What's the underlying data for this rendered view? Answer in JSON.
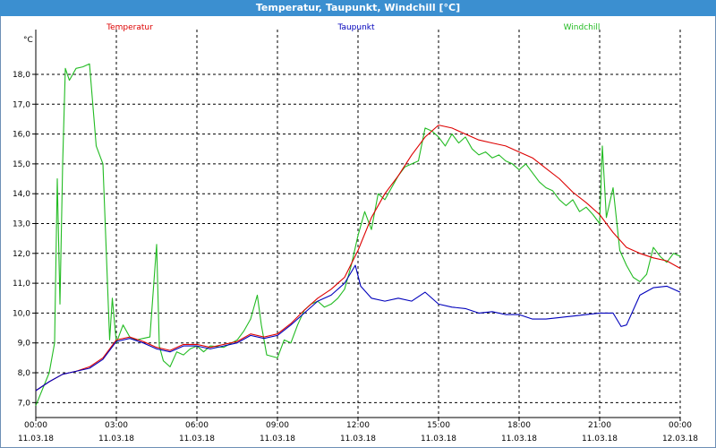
{
  "window": {
    "title": "Temperatur, Taupunkt, Windchill [°C]"
  },
  "colors": {
    "temperature": "#dd0000",
    "dewpoint": "#0000bb",
    "windchill": "#22bb22",
    "grid": "#000000",
    "titlebar": "#3b8fd0"
  },
  "chart_data": {
    "type": "line",
    "title": "Temperatur, Taupunkt, Windchill [°C]",
    "ylabel": "°C",
    "ylim": [
      6.5,
      19.5
    ],
    "xlim_hours": [
      0,
      24
    ],
    "grid": true,
    "legend_position": "top",
    "yticks": [
      "7,0",
      "8,0",
      "9,0",
      "10,0",
      "11,0",
      "12,0",
      "13,0",
      "14,0",
      "15,0",
      "16,0",
      "17,0",
      "18,0"
    ],
    "xticks": [
      {
        "time": "00:00",
        "date": "11.03.18"
      },
      {
        "time": "03:00",
        "date": "11.03.18"
      },
      {
        "time": "06:00",
        "date": "11.03.18"
      },
      {
        "time": "09:00",
        "date": "11.03.18"
      },
      {
        "time": "12:00",
        "date": "11.03.18"
      },
      {
        "time": "15:00",
        "date": "11.03.18"
      },
      {
        "time": "18:00",
        "date": "11.03.18"
      },
      {
        "time": "21:00",
        "date": "11.03.18"
      },
      {
        "time": "00:00",
        "date": "12.03.18"
      }
    ],
    "series": [
      {
        "name": "Temperatur",
        "color": "#dd0000",
        "points": [
          [
            0,
            7.4
          ],
          [
            0.5,
            7.7
          ],
          [
            1,
            7.95
          ],
          [
            1.5,
            8.05
          ],
          [
            2,
            8.2
          ],
          [
            2.5,
            8.5
          ],
          [
            3,
            9.1
          ],
          [
            3.5,
            9.2
          ],
          [
            4,
            9.05
          ],
          [
            4.5,
            8.85
          ],
          [
            5,
            8.75
          ],
          [
            5.5,
            8.95
          ],
          [
            6,
            8.95
          ],
          [
            6.5,
            8.85
          ],
          [
            7,
            8.95
          ],
          [
            7.5,
            9.05
          ],
          [
            8,
            9.3
          ],
          [
            8.5,
            9.2
          ],
          [
            9,
            9.3
          ],
          [
            9.5,
            9.65
          ],
          [
            10,
            10.1
          ],
          [
            10.5,
            10.5
          ],
          [
            11,
            10.8
          ],
          [
            11.5,
            11.2
          ],
          [
            12,
            12.1
          ],
          [
            12.5,
            13.2
          ],
          [
            13,
            14.0
          ],
          [
            13.5,
            14.6
          ],
          [
            14,
            15.3
          ],
          [
            14.5,
            15.9
          ],
          [
            15,
            16.3
          ],
          [
            15.5,
            16.2
          ],
          [
            16,
            16.0
          ],
          [
            16.5,
            15.8
          ],
          [
            17,
            15.7
          ],
          [
            17.5,
            15.6
          ],
          [
            18,
            15.4
          ],
          [
            18.5,
            15.2
          ],
          [
            19,
            14.85
          ],
          [
            19.5,
            14.5
          ],
          [
            20,
            14.05
          ],
          [
            20.5,
            13.7
          ],
          [
            21,
            13.3
          ],
          [
            21.5,
            12.7
          ],
          [
            22,
            12.2
          ],
          [
            22.5,
            12.0
          ],
          [
            23,
            11.85
          ],
          [
            23.5,
            11.75
          ],
          [
            24,
            11.5
          ]
        ]
      },
      {
        "name": "Taupunkt",
        "color": "#0000bb",
        "points": [
          [
            0,
            7.4
          ],
          [
            0.5,
            7.7
          ],
          [
            1,
            7.95
          ],
          [
            1.5,
            8.05
          ],
          [
            2,
            8.15
          ],
          [
            2.5,
            8.45
          ],
          [
            3,
            9.05
          ],
          [
            3.5,
            9.15
          ],
          [
            4,
            9.0
          ],
          [
            4.5,
            8.8
          ],
          [
            5,
            8.7
          ],
          [
            5.5,
            8.9
          ],
          [
            6,
            8.9
          ],
          [
            6.5,
            8.8
          ],
          [
            7,
            8.9
          ],
          [
            7.5,
            9.0
          ],
          [
            8,
            9.25
          ],
          [
            8.5,
            9.15
          ],
          [
            9,
            9.25
          ],
          [
            9.5,
            9.6
          ],
          [
            10,
            10.0
          ],
          [
            10.5,
            10.4
          ],
          [
            11,
            10.6
          ],
          [
            11.5,
            11.0
          ],
          [
            11.9,
            11.6
          ],
          [
            12.1,
            10.9
          ],
          [
            12.5,
            10.5
          ],
          [
            13,
            10.4
          ],
          [
            13.5,
            10.5
          ],
          [
            14,
            10.4
          ],
          [
            14.5,
            10.7
          ],
          [
            15,
            10.3
          ],
          [
            15.5,
            10.2
          ],
          [
            16,
            10.15
          ],
          [
            16.5,
            10.0
          ],
          [
            17,
            10.05
          ],
          [
            17.5,
            9.95
          ],
          [
            18,
            9.95
          ],
          [
            18.5,
            9.8
          ],
          [
            19,
            9.8
          ],
          [
            19.5,
            9.85
          ],
          [
            20,
            9.9
          ],
          [
            20.5,
            9.95
          ],
          [
            21,
            10.0
          ],
          [
            21.5,
            10.0
          ],
          [
            21.8,
            9.55
          ],
          [
            22,
            9.6
          ],
          [
            22.5,
            10.6
          ],
          [
            23,
            10.85
          ],
          [
            23.5,
            10.9
          ],
          [
            24,
            10.7
          ]
        ]
      },
      {
        "name": "Windchill",
        "color": "#22bb22",
        "points": [
          [
            0,
            6.9
          ],
          [
            0.5,
            8.0
          ],
          [
            0.7,
            9.0
          ],
          [
            0.8,
            14.5
          ],
          [
            0.9,
            10.3
          ],
          [
            1,
            15.0
          ],
          [
            1.1,
            18.2
          ],
          [
            1.25,
            17.8
          ],
          [
            1.5,
            18.2
          ],
          [
            1.75,
            18.25
          ],
          [
            2,
            18.35
          ],
          [
            2.25,
            15.6
          ],
          [
            2.5,
            15.0
          ],
          [
            2.75,
            9.1
          ],
          [
            2.85,
            10.5
          ],
          [
            3,
            9.0
          ],
          [
            3.25,
            9.6
          ],
          [
            3.5,
            9.2
          ],
          [
            3.75,
            9.1
          ],
          [
            4,
            9.15
          ],
          [
            4.25,
            9.2
          ],
          [
            4.5,
            12.3
          ],
          [
            4.6,
            8.9
          ],
          [
            4.75,
            8.4
          ],
          [
            5,
            8.2
          ],
          [
            5.25,
            8.7
          ],
          [
            5.5,
            8.6
          ],
          [
            5.75,
            8.8
          ],
          [
            6,
            8.9
          ],
          [
            6.25,
            8.7
          ],
          [
            6.5,
            8.9
          ],
          [
            7,
            8.85
          ],
          [
            7.5,
            9.1
          ],
          [
            7.75,
            9.4
          ],
          [
            8,
            9.8
          ],
          [
            8.25,
            10.6
          ],
          [
            8.4,
            9.6
          ],
          [
            8.6,
            8.6
          ],
          [
            9,
            8.5
          ],
          [
            9.25,
            9.1
          ],
          [
            9.5,
            9.0
          ],
          [
            9.75,
            9.6
          ],
          [
            10,
            10.1
          ],
          [
            10.25,
            10.3
          ],
          [
            10.5,
            10.4
          ],
          [
            10.75,
            10.2
          ],
          [
            11,
            10.3
          ],
          [
            11.25,
            10.5
          ],
          [
            11.5,
            10.8
          ],
          [
            11.75,
            11.6
          ],
          [
            12,
            12.6
          ],
          [
            12.25,
            13.4
          ],
          [
            12.5,
            12.8
          ],
          [
            12.75,
            14.0
          ],
          [
            13,
            13.8
          ],
          [
            13.25,
            14.2
          ],
          [
            13.5,
            14.6
          ],
          [
            13.75,
            14.9
          ],
          [
            14,
            15.0
          ],
          [
            14.25,
            15.1
          ],
          [
            14.5,
            16.2
          ],
          [
            14.75,
            16.1
          ],
          [
            15,
            15.9
          ],
          [
            15.25,
            15.6
          ],
          [
            15.5,
            16.0
          ],
          [
            15.75,
            15.7
          ],
          [
            16,
            15.9
          ],
          [
            16.25,
            15.5
          ],
          [
            16.5,
            15.3
          ],
          [
            16.75,
            15.4
          ],
          [
            17,
            15.2
          ],
          [
            17.25,
            15.3
          ],
          [
            17.5,
            15.1
          ],
          [
            17.75,
            15.0
          ],
          [
            18,
            14.8
          ],
          [
            18.25,
            15.0
          ],
          [
            18.5,
            14.7
          ],
          [
            18.75,
            14.4
          ],
          [
            19,
            14.2
          ],
          [
            19.25,
            14.1
          ],
          [
            19.5,
            13.8
          ],
          [
            19.75,
            13.6
          ],
          [
            20,
            13.8
          ],
          [
            20.25,
            13.4
          ],
          [
            20.5,
            13.55
          ],
          [
            20.75,
            13.3
          ],
          [
            21,
            13.0
          ],
          [
            21.1,
            15.6
          ],
          [
            21.25,
            13.2
          ],
          [
            21.5,
            14.2
          ],
          [
            21.75,
            12.1
          ],
          [
            22,
            11.6
          ],
          [
            22.25,
            11.2
          ],
          [
            22.5,
            11.05
          ],
          [
            22.75,
            11.3
          ],
          [
            23,
            12.2
          ],
          [
            23.25,
            11.9
          ],
          [
            23.5,
            11.7
          ],
          [
            23.75,
            12.0
          ],
          [
            24,
            11.9
          ]
        ]
      }
    ]
  }
}
